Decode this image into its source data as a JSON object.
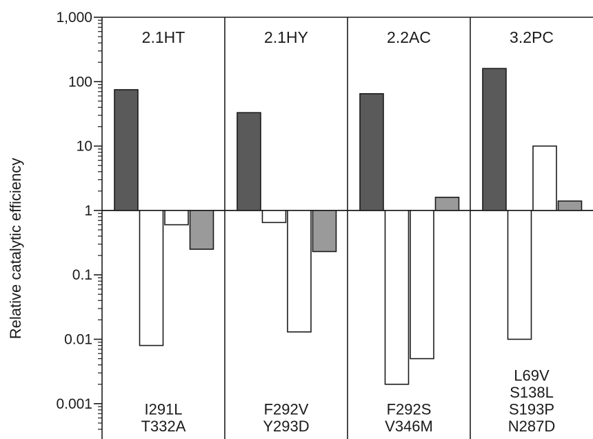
{
  "chart_data": {
    "type": "bar",
    "ylabel": "Relative catalytic efficiency",
    "yscale": "log",
    "ylim": [
      0.0004,
      1000
    ],
    "baseline": 1,
    "yticks": [
      {
        "value": 1000,
        "label": "1,000"
      },
      {
        "value": 100,
        "label": "100"
      },
      {
        "value": 10,
        "label": "10"
      },
      {
        "value": 1,
        "label": "1"
      },
      {
        "value": 0.1,
        "label": "0.1"
      },
      {
        "value": 0.01,
        "label": "0.01"
      },
      {
        "value": 0.001,
        "label": "0.001"
      }
    ],
    "colors": {
      "dark": "#5a5a5a",
      "white": "#ffffff",
      "gray": "#9a9a9a",
      "axis": "#1a1a1a"
    },
    "panels": [
      {
        "title": "2.1HT",
        "mutations": [
          "I291L",
          "T332A"
        ],
        "bars": [
          {
            "value": 75,
            "fill": "dark"
          },
          {
            "value": 0.008,
            "fill": "white"
          },
          {
            "value": 0.6,
            "fill": "white"
          },
          {
            "value": 0.25,
            "fill": "gray"
          }
        ]
      },
      {
        "title": "2.1HY",
        "mutations": [
          "F292V",
          "Y293D"
        ],
        "bars": [
          {
            "value": 33,
            "fill": "dark"
          },
          {
            "value": 0.65,
            "fill": "white"
          },
          {
            "value": 0.013,
            "fill": "white"
          },
          {
            "value": 0.23,
            "fill": "gray"
          }
        ]
      },
      {
        "title": "2.2AC",
        "mutations": [
          "F292S",
          "V346M"
        ],
        "bars": [
          {
            "value": 65,
            "fill": "dark"
          },
          {
            "value": 0.002,
            "fill": "white"
          },
          {
            "value": 0.005,
            "fill": "white"
          },
          {
            "value": 1.6,
            "fill": "gray"
          }
        ]
      },
      {
        "title": "3.2PC",
        "mutations": [
          "L69V",
          "S138L",
          "S193P",
          "N287D"
        ],
        "bars": [
          {
            "value": 160,
            "fill": "dark"
          },
          {
            "value": 0.01,
            "fill": "white"
          },
          {
            "value": 10,
            "fill": "white"
          },
          {
            "value": 1.4,
            "fill": "gray"
          }
        ]
      }
    ]
  }
}
